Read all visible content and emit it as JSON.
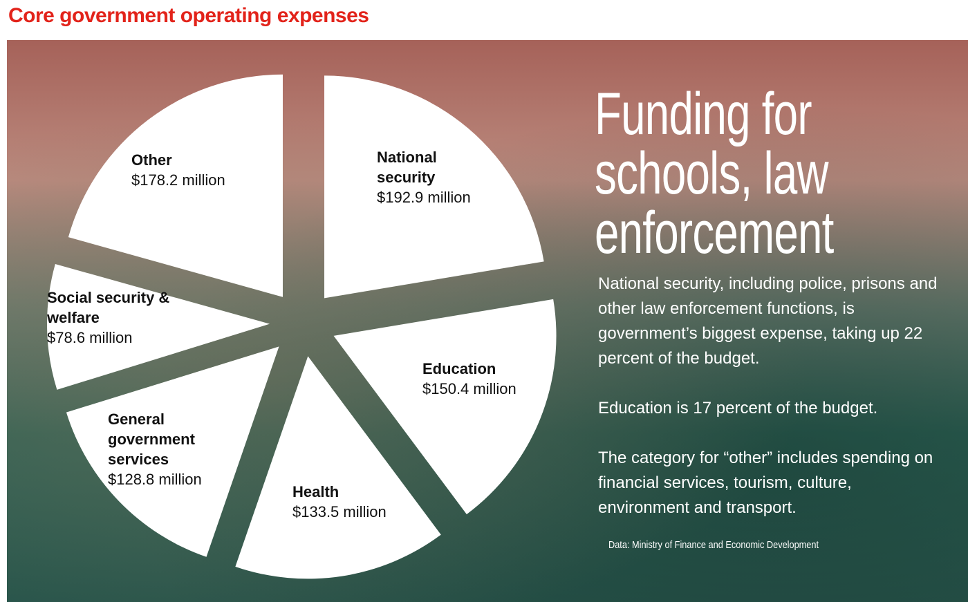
{
  "chart_data": {
    "type": "pie",
    "title": "Core government operating expenses",
    "categories": [
      "National security",
      "Education",
      "Health",
      "General government services",
      "Social security & welfare",
      "Other"
    ],
    "values": [
      192.9,
      150.4,
      133.5,
      128.8,
      78.6,
      178.2
    ],
    "value_labels": [
      "$192.9 million",
      "$150.4 million",
      "$133.5 million",
      "$128.8 million",
      "$78.6 million",
      "$178.2 million"
    ],
    "color": "#ffffff"
  },
  "headline": "Funding for schools, law enforcement",
  "paragraphs": [
    "National security, including police, prisons and other law enforcement functions, is government’s biggest expense, taking up 22 percent of the budget.",
    "Education is 17 percent of the budget.",
    "The category for “other” includes spending on financial services, tourism, culture, environment and transport."
  ],
  "source": "Data: Ministry of Finance and Economic Development"
}
